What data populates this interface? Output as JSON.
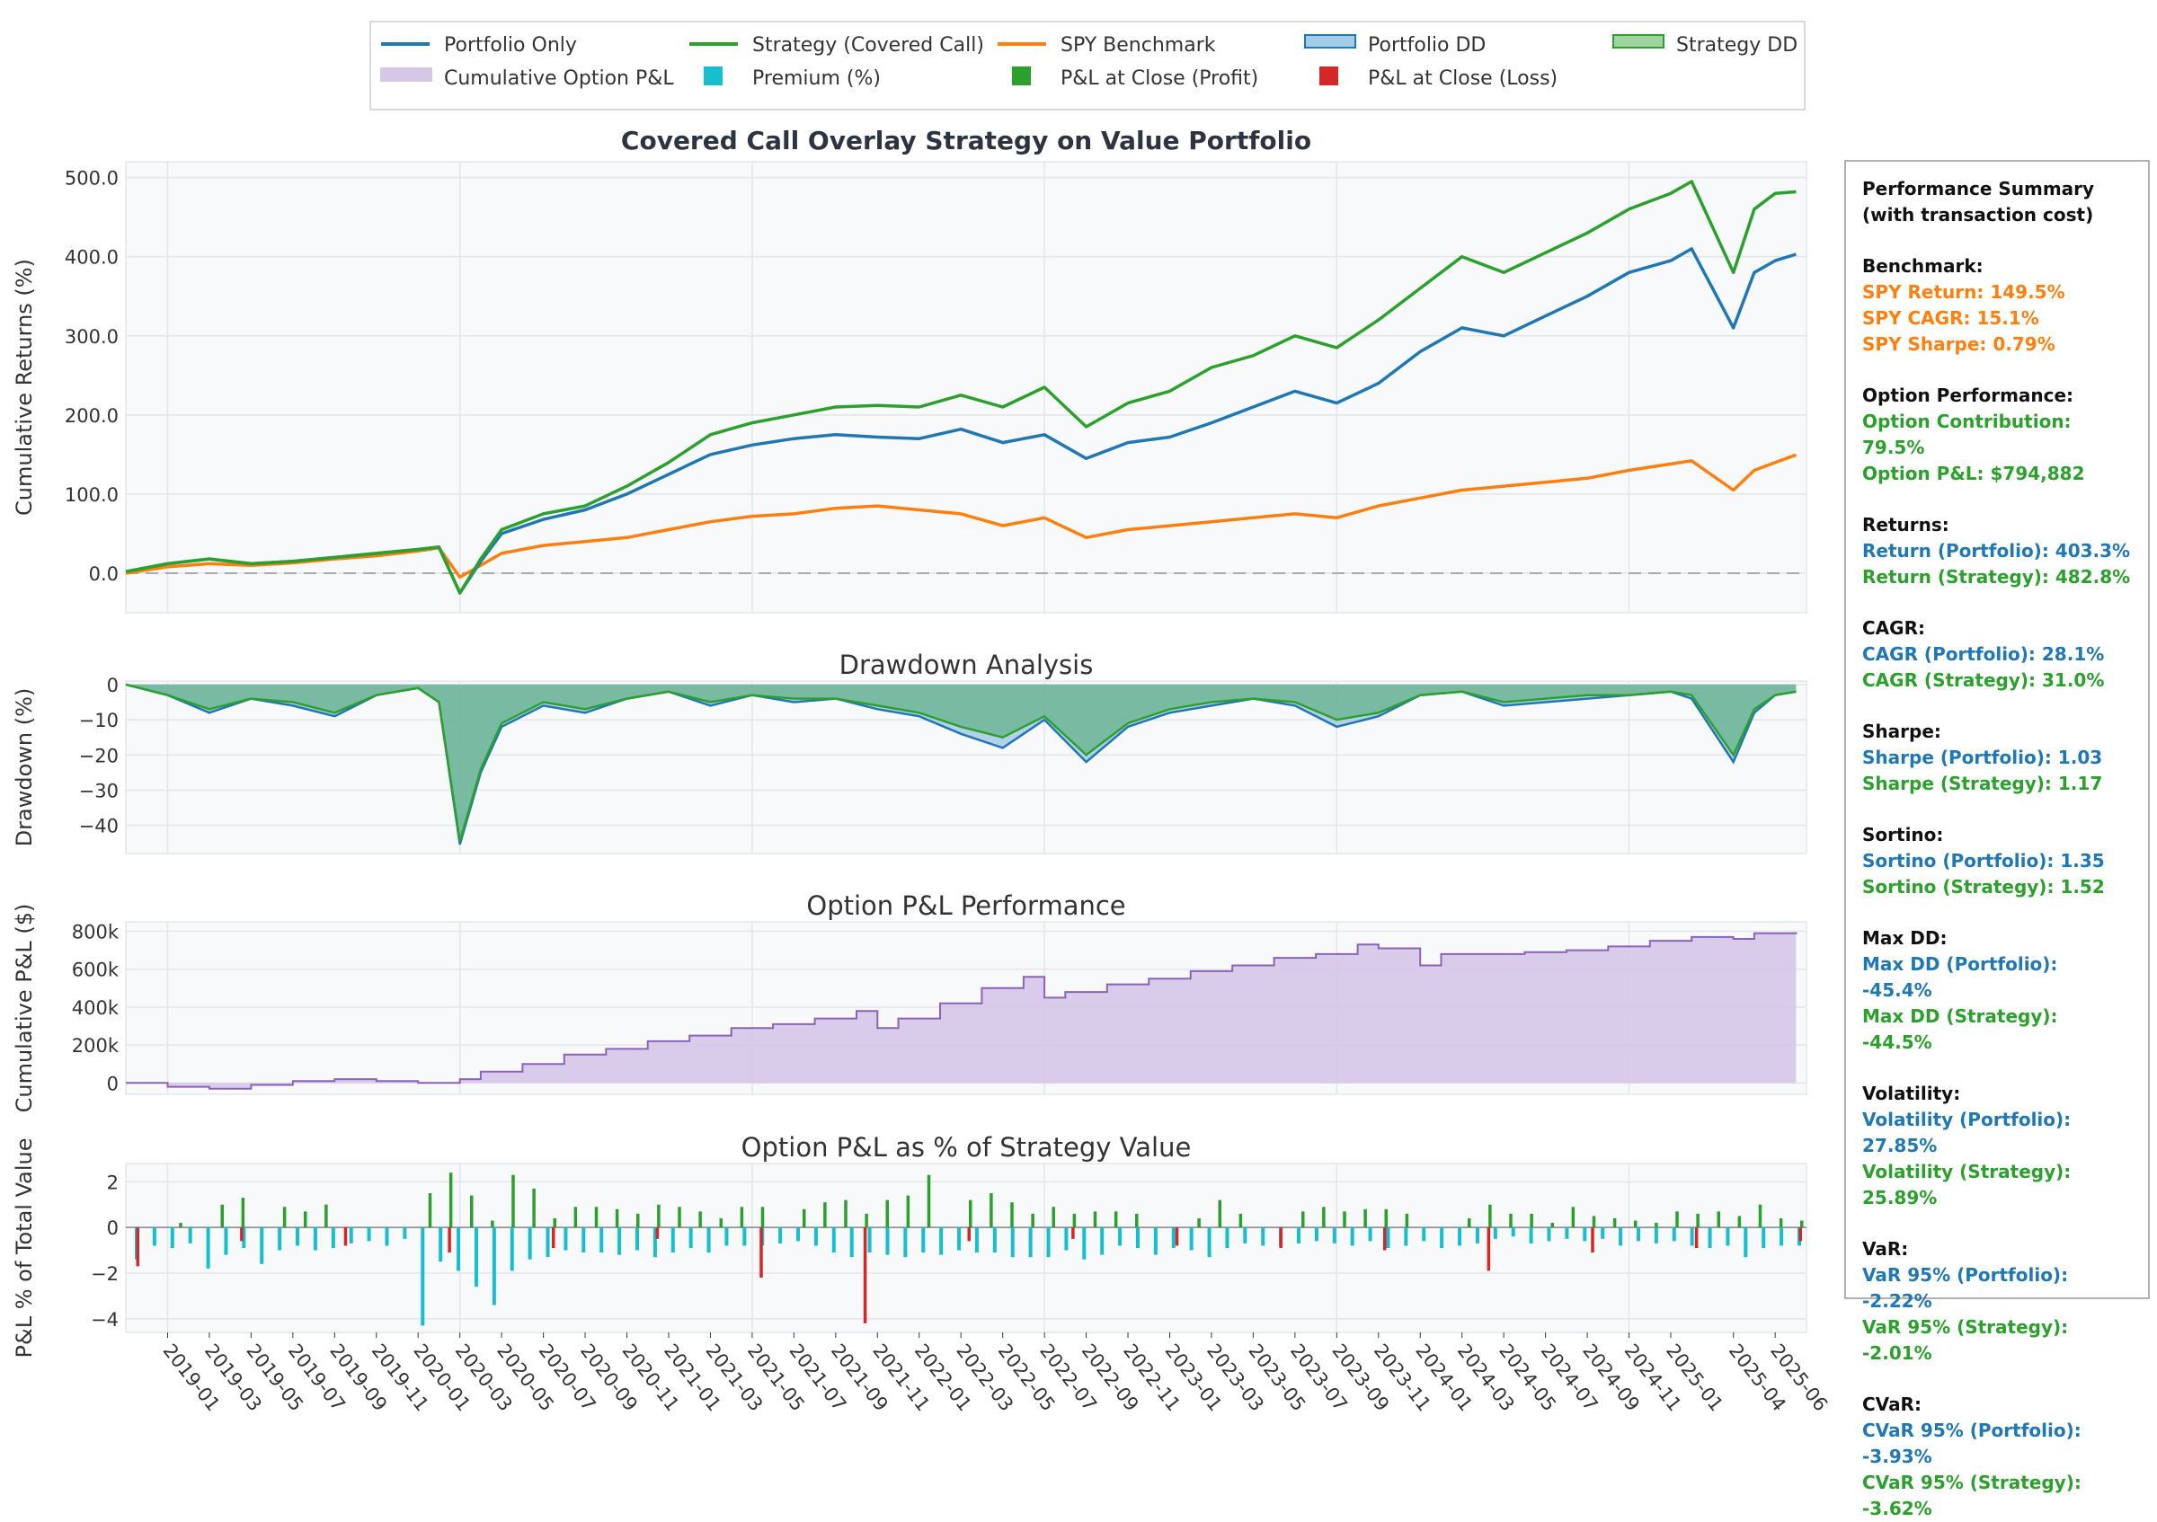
{
  "chart_data": [
    {
      "type": "line",
      "title": "Covered Call Overlay Strategy on Value Portfolio",
      "xlabel": "",
      "ylabel": "Cumulative Returns (%)",
      "ylim": [
        -50,
        520
      ],
      "yticks": [
        0,
        100,
        200,
        300,
        400,
        500
      ],
      "ytick_labels": [
        "0.0",
        "100.0",
        "200.0",
        "300.0",
        "400.0",
        "500.0"
      ],
      "grid": true,
      "x_dates": [
        "2018-11",
        "2019-01",
        "2019-03",
        "2019-05",
        "2019-07",
        "2019-09",
        "2019-11",
        "2020-01",
        "2020-02",
        "2020-03",
        "2020-04",
        "2020-05",
        "2020-07",
        "2020-09",
        "2020-11",
        "2021-01",
        "2021-03",
        "2021-05",
        "2021-07",
        "2021-09",
        "2021-11",
        "2022-01",
        "2022-03",
        "2022-05",
        "2022-07",
        "2022-09",
        "2022-11",
        "2023-01",
        "2023-03",
        "2023-05",
        "2023-07",
        "2023-09",
        "2023-11",
        "2024-01",
        "2024-03",
        "2024-05",
        "2024-07",
        "2024-09",
        "2024-11",
        "2025-01",
        "2025-02",
        "2025-04",
        "2025-05",
        "2025-06",
        "2025-07"
      ],
      "series": [
        {
          "name": "Portfolio Only",
          "color": "#1f77b4",
          "values": [
            2,
            12,
            18,
            12,
            15,
            20,
            25,
            30,
            33,
            -25,
            15,
            50,
            68,
            80,
            100,
            125,
            150,
            162,
            170,
            175,
            172,
            170,
            182,
            165,
            175,
            145,
            165,
            172,
            190,
            210,
            230,
            215,
            240,
            280,
            310,
            300,
            325,
            350,
            380,
            395,
            410,
            310,
            380,
            395,
            403
          ]
        },
        {
          "name": "Strategy (Covered Call)",
          "color": "#2ca02c",
          "values": [
            2,
            12,
            18,
            12,
            15,
            20,
            25,
            30,
            33,
            -25,
            18,
            55,
            75,
            85,
            110,
            140,
            175,
            190,
            200,
            210,
            212,
            210,
            225,
            210,
            235,
            185,
            215,
            230,
            260,
            275,
            300,
            285,
            320,
            360,
            400,
            380,
            405,
            430,
            460,
            480,
            495,
            380,
            460,
            480,
            482
          ]
        },
        {
          "name": "SPY Benchmark",
          "color": "#ff7f0e",
          "values": [
            0,
            8,
            12,
            10,
            13,
            18,
            22,
            28,
            32,
            -5,
            10,
            25,
            35,
            40,
            45,
            55,
            65,
            72,
            75,
            82,
            85,
            80,
            75,
            60,
            70,
            45,
            55,
            60,
            65,
            70,
            75,
            70,
            85,
            95,
            105,
            110,
            115,
            120,
            130,
            138,
            142,
            105,
            130,
            140,
            149.5
          ]
        }
      ]
    },
    {
      "type": "area",
      "title": "Drawdown Analysis",
      "ylabel": "Drawdown (%)",
      "ylim": [
        -48,
        1
      ],
      "yticks": [
        0,
        -10,
        -20,
        -30,
        -40
      ],
      "ytick_labels": [
        "0",
        "−10",
        "−20",
        "−30",
        "−40"
      ],
      "x_dates": [
        "2018-11",
        "2019-01",
        "2019-03",
        "2019-05",
        "2019-07",
        "2019-09",
        "2019-11",
        "2020-01",
        "2020-02",
        "2020-03",
        "2020-04",
        "2020-05",
        "2020-07",
        "2020-09",
        "2020-11",
        "2021-01",
        "2021-03",
        "2021-05",
        "2021-07",
        "2021-09",
        "2021-11",
        "2022-01",
        "2022-03",
        "2022-05",
        "2022-07",
        "2022-09",
        "2022-11",
        "2023-01",
        "2023-03",
        "2023-05",
        "2023-07",
        "2023-09",
        "2023-11",
        "2024-01",
        "2024-03",
        "2024-05",
        "2024-07",
        "2024-09",
        "2024-11",
        "2025-01",
        "2025-02",
        "2025-04",
        "2025-05",
        "2025-06",
        "2025-07"
      ],
      "series": [
        {
          "name": "Portfolio DD",
          "color": "#1f77b4",
          "values": [
            0,
            -3,
            -8,
            -4,
            -6,
            -9,
            -3,
            -1,
            -5,
            -45.4,
            -25,
            -12,
            -6,
            -8,
            -4,
            -2,
            -6,
            -3,
            -5,
            -4,
            -7,
            -9,
            -14,
            -18,
            -10,
            -22,
            -12,
            -8,
            -6,
            -4,
            -6,
            -12,
            -9,
            -3,
            -2,
            -6,
            -5,
            -4,
            -3,
            -2,
            -4,
            -22,
            -8,
            -3,
            -2
          ]
        },
        {
          "name": "Strategy DD",
          "color": "#2ca02c",
          "values": [
            0,
            -3,
            -7,
            -4,
            -5,
            -8,
            -3,
            -1,
            -5,
            -44.5,
            -24,
            -11,
            -5,
            -7,
            -4,
            -2,
            -5,
            -3,
            -4,
            -4,
            -6,
            -8,
            -12,
            -15,
            -9,
            -20,
            -11,
            -7,
            -5,
            -4,
            -5,
            -10,
            -8,
            -3,
            -2,
            -5,
            -4,
            -3,
            -3,
            -2,
            -3,
            -20,
            -7,
            -3,
            -2
          ]
        }
      ]
    },
    {
      "type": "area",
      "title": "Option P&L Performance",
      "ylabel": "Cumulative P&L ($)",
      "ylim": [
        -60000,
        850000
      ],
      "yticks": [
        0,
        200000,
        400000,
        600000,
        800000
      ],
      "ytick_labels": [
        "0",
        "200k",
        "400k",
        "600k",
        "800k"
      ],
      "series": [
        {
          "name": "Cumulative Option P&L",
          "color": "#9467bd",
          "x_dates": [
            "2018-11",
            "2019-01",
            "2019-03",
            "2019-05",
            "2019-07",
            "2019-09",
            "2019-11",
            "2020-01",
            "2020-03",
            "2020-04",
            "2020-06",
            "2020-08",
            "2020-10",
            "2020-12",
            "2021-02",
            "2021-04",
            "2021-06",
            "2021-08",
            "2021-10",
            "2021-11",
            "2021-12",
            "2022-02",
            "2022-04",
            "2022-06",
            "2022-07",
            "2022-08",
            "2022-10",
            "2022-12",
            "2023-02",
            "2023-04",
            "2023-06",
            "2023-08",
            "2023-10",
            "2023-11",
            "2024-01",
            "2024-02",
            "2024-04",
            "2024-06",
            "2024-08",
            "2024-10",
            "2024-12",
            "2025-02",
            "2025-04",
            "2025-05",
            "2025-07"
          ],
          "values": [
            0,
            -20000,
            -30000,
            -10000,
            10000,
            20000,
            10000,
            0,
            20000,
            60000,
            100000,
            150000,
            180000,
            220000,
            250000,
            290000,
            310000,
            340000,
            380000,
            290000,
            340000,
            420000,
            500000,
            560000,
            450000,
            480000,
            520000,
            550000,
            590000,
            620000,
            660000,
            680000,
            730000,
            710000,
            620000,
            680000,
            680000,
            690000,
            700000,
            720000,
            750000,
            770000,
            760000,
            790000,
            794882
          ]
        }
      ]
    },
    {
      "type": "bar",
      "title": "Option P&L as % of Strategy Value",
      "ylabel": "P&L % of Total Value",
      "ylim": [
        -4.6,
        2.8
      ],
      "yticks": [
        2,
        0,
        -2,
        -4
      ],
      "ytick_labels": [
        "2",
        "0",
        "−2",
        "−4"
      ],
      "x_tick_labels": [
        "2019-01",
        "2019-03",
        "2019-05",
        "2019-07",
        "2019-09",
        "2019-11",
        "2020-01",
        "2020-03",
        "2020-05",
        "2020-07",
        "2020-09",
        "2020-11",
        "2021-01",
        "2021-03",
        "2021-05",
        "2021-07",
        "2021-09",
        "2021-11",
        "2022-01",
        "2022-03",
        "2022-05",
        "2022-07",
        "2022-09",
        "2022-11",
        "2023-01",
        "2023-03",
        "2023-05",
        "2023-07",
        "2023-09",
        "2023-11",
        "2024-01",
        "2024-03",
        "2024-05",
        "2024-07",
        "2024-09",
        "2024-11",
        "2025-01",
        "2025-04",
        "2025-06"
      ],
      "series": [
        {
          "name": "Premium (%)",
          "color": "#17becf",
          "values": [
            -1.4,
            -0.8,
            -0.9,
            -0.7,
            -1.8,
            -1.2,
            -0.9,
            -1.6,
            -1.0,
            -0.8,
            -1.0,
            -0.9,
            -0.7,
            -0.6,
            -0.8,
            -0.5,
            -4.3,
            -1.5,
            -1.9,
            -2.6,
            -3.4,
            -1.9,
            -1.4,
            -1.3,
            -1.0,
            -1.1,
            -1.1,
            -1.2,
            -1.0,
            -1.3,
            -1.1,
            -0.9,
            -1.1,
            -0.8,
            -0.8,
            -0.8,
            -0.7,
            -0.6,
            -0.8,
            -1.1,
            -1.3,
            -1.1,
            -1.2,
            -1.3,
            -1.1,
            -1.2,
            -1.0,
            -1.1,
            -1.1,
            -1.3,
            -1.3,
            -1.3,
            -1.0,
            -1.4,
            -1.2,
            -0.8,
            -0.9,
            -1.2,
            -0.9,
            -1.0,
            -1.3,
            -0.9,
            -0.7,
            -0.8,
            -0.8,
            -0.7,
            -0.6,
            -0.7,
            -0.8,
            -0.6,
            -0.9,
            -0.8,
            -0.6,
            -0.9,
            -0.8,
            -0.7,
            -0.5,
            -0.4,
            -0.7,
            -0.6,
            -0.5,
            -0.6,
            -0.5,
            -0.8,
            -0.6,
            -0.7,
            -0.6,
            -0.8,
            -0.9,
            -0.8,
            -1.3,
            -0.9,
            -0.8,
            -0.8
          ]
        },
        {
          "name": "P&L at Close (Profit)",
          "color": "#2ca02c",
          "values": [
            0,
            0,
            0.2,
            0,
            1.0,
            1.3,
            0,
            0.9,
            0.7,
            1.0,
            0,
            0,
            0,
            0,
            1.5,
            2.4,
            1.4,
            0.3,
            2.3,
            1.7,
            0.4,
            0.9,
            0.9,
            0.8,
            0.6,
            1.0,
            0.9,
            0.7,
            0.4,
            0.9,
            0.9,
            0,
            0.8,
            1.1,
            1.2,
            0.6,
            1.2,
            1.4,
            2.3,
            0,
            1.2,
            1.5,
            1.1,
            0.6,
            0.9,
            0.6,
            0.7,
            0.7,
            0.6,
            0,
            0,
            0.4,
            1.2,
            0.6,
            0,
            0,
            0.7,
            0.9,
            0.7,
            0.8,
            0.8,
            0.6,
            0,
            0,
            0.4,
            1.0,
            0.6,
            0.6,
            0.2,
            0.9,
            0.5,
            0.4,
            0.3,
            0.2,
            0.7,
            0.6,
            0.7,
            0.5,
            1.0,
            0.4,
            0.3
          ]
        },
        {
          "name": "P&L at Close (Loss)",
          "color": "#d62728",
          "values": [
            -1.7,
            -0.6,
            -0.8,
            -1.1,
            -0.9,
            -0.5,
            -2.2,
            -4.2,
            -0.6,
            -0.5,
            -0.8,
            -0.9,
            -1.0,
            -1.9,
            -1.1,
            -0.9,
            -0.6
          ]
        }
      ]
    }
  ],
  "legend": {
    "items": [
      {
        "label": "Portfolio Only",
        "color": "#1f77b4",
        "kind": "line"
      },
      {
        "label": "Strategy (Covered Call)",
        "color": "#2ca02c",
        "kind": "line"
      },
      {
        "label": "SPY Benchmark",
        "color": "#ff7f0e",
        "kind": "line"
      },
      {
        "label": "Portfolio DD",
        "color": "#1f77b4",
        "kind": "fill-blue"
      },
      {
        "label": "Strategy DD",
        "color": "#2ca02c",
        "kind": "fill-green"
      },
      {
        "label": "Cumulative Option P&L",
        "color": "#9467bd",
        "kind": "fill-purple"
      },
      {
        "label": "Premium (%)",
        "color": "#17becf",
        "kind": "square"
      },
      {
        "label": "P&L at Close (Profit)",
        "color": "#2ca02c",
        "kind": "square"
      },
      {
        "label": "P&L at Close (Loss)",
        "color": "#d62728",
        "kind": "square"
      }
    ]
  },
  "summary": {
    "title_line1": "Performance Summary",
    "title_line2": "(with transaction cost)",
    "sections": [
      {
        "head": "Benchmark:",
        "lines": [
          {
            "text": "SPY Return: 149.5%",
            "color": "orange"
          },
          {
            "text": "SPY CAGR: 15.1%",
            "color": "orange"
          },
          {
            "text": "SPY Sharpe: 0.79%",
            "color": "orange"
          }
        ]
      },
      {
        "head": "Option Performance:",
        "lines": [
          {
            "text": "Option Contribution: 79.5%",
            "color": "green"
          },
          {
            "text": "Option P&L: $794,882",
            "color": "green"
          }
        ]
      },
      {
        "head": "Returns:",
        "lines": [
          {
            "text": "Return (Portfolio): 403.3%",
            "color": "blue"
          },
          {
            "text": "Return (Strategy): 482.8%",
            "color": "green"
          }
        ]
      },
      {
        "head": "CAGR:",
        "lines": [
          {
            "text": "CAGR (Portfolio): 28.1%",
            "color": "blue"
          },
          {
            "text": "CAGR (Strategy): 31.0%",
            "color": "green"
          }
        ]
      },
      {
        "head": "Sharpe:",
        "lines": [
          {
            "text": "Sharpe (Portfolio): 1.03",
            "color": "blue"
          },
          {
            "text": "Sharpe (Strategy): 1.17",
            "color": "green"
          }
        ]
      },
      {
        "head": "Sortino:",
        "lines": [
          {
            "text": "Sortino (Portfolio): 1.35",
            "color": "blue"
          },
          {
            "text": "Sortino (Strategy): 1.52",
            "color": "green"
          }
        ]
      },
      {
        "head": "Max DD:",
        "lines": [
          {
            "text": "Max DD (Portfolio): -45.4%",
            "color": "blue"
          },
          {
            "text": "Max DD (Strategy): -44.5%",
            "color": "green"
          }
        ]
      },
      {
        "head": "Volatility:",
        "lines": [
          {
            "text": "Volatility (Portfolio): 27.85%",
            "color": "blue"
          },
          {
            "text": "Volatility (Strategy): 25.89%",
            "color": "green"
          }
        ]
      },
      {
        "head": "VaR:",
        "lines": [
          {
            "text": "VaR 95% (Portfolio): -2.22%",
            "color": "blue"
          },
          {
            "text": "VaR 95% (Strategy): -2.01%",
            "color": "green"
          }
        ]
      },
      {
        "head": "CVaR:",
        "lines": [
          {
            "text": "CVaR 95% (Portfolio): -3.93%",
            "color": "blue"
          },
          {
            "text": "CVaR 95% (Strategy): -3.62%",
            "color": "green"
          }
        ]
      }
    ]
  }
}
